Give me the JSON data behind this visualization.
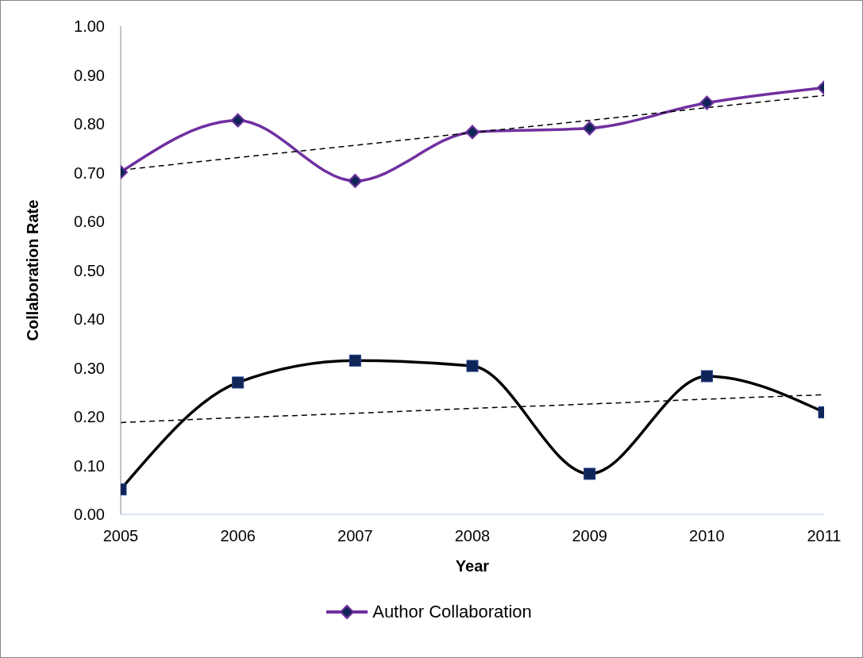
{
  "chart_data": {
    "type": "line",
    "xlabel": "Year",
    "ylabel": "Collaboration Rate",
    "x": [
      2005,
      2006,
      2007,
      2008,
      2009,
      2010,
      2011
    ],
    "xlim": [
      2005,
      2011
    ],
    "xticks": [
      2005,
      2006,
      2007,
      2008,
      2009,
      2010,
      2011
    ],
    "ylim": [
      0,
      1
    ],
    "yticks": [
      {
        "value": 0,
        "label": "0.00"
      },
      {
        "value": 0.1,
        "label": "0.10"
      },
      {
        "value": 0.2,
        "label": "0.20"
      },
      {
        "value": 0.3,
        "label": "0.30"
      },
      {
        "value": 0.4,
        "label": "0.40"
      },
      {
        "value": 0.5,
        "label": "0.50"
      },
      {
        "value": 0.6,
        "label": "0.60"
      },
      {
        "value": 0.7,
        "label": "0.70"
      },
      {
        "value": 0.8,
        "label": "0.80"
      },
      {
        "value": 0.9,
        "label": "0.90"
      },
      {
        "value": 1,
        "label": "1.00"
      }
    ],
    "legend": "bottom",
    "series": [
      {
        "name": "Author Collaboration",
        "color": "#7030a0",
        "marker": "diamond",
        "values": [
          0.701,
          0.807,
          0.683,
          0.783,
          0.791,
          0.843,
          0.874
        ]
      },
      {
        "color": "#000000",
        "marker": "square",
        "values": [
          0.051,
          0.27,
          0.315,
          0.304,
          0.083,
          0.283,
          0.209
        ]
      },
      {
        "type": "line",
        "color": "#000000",
        "line_style": "dashed",
        "marker": "none",
        "values": [
          0.705,
          0.731,
          0.756,
          0.782,
          0.807,
          0.833,
          0.858
        ]
      },
      {
        "type": "line",
        "color": "#000000",
        "line_style": "dashed",
        "marker": "none",
        "values": [
          0.188,
          0.198,
          0.207,
          0.217,
          0.226,
          0.236,
          0.245
        ]
      }
    ]
  }
}
